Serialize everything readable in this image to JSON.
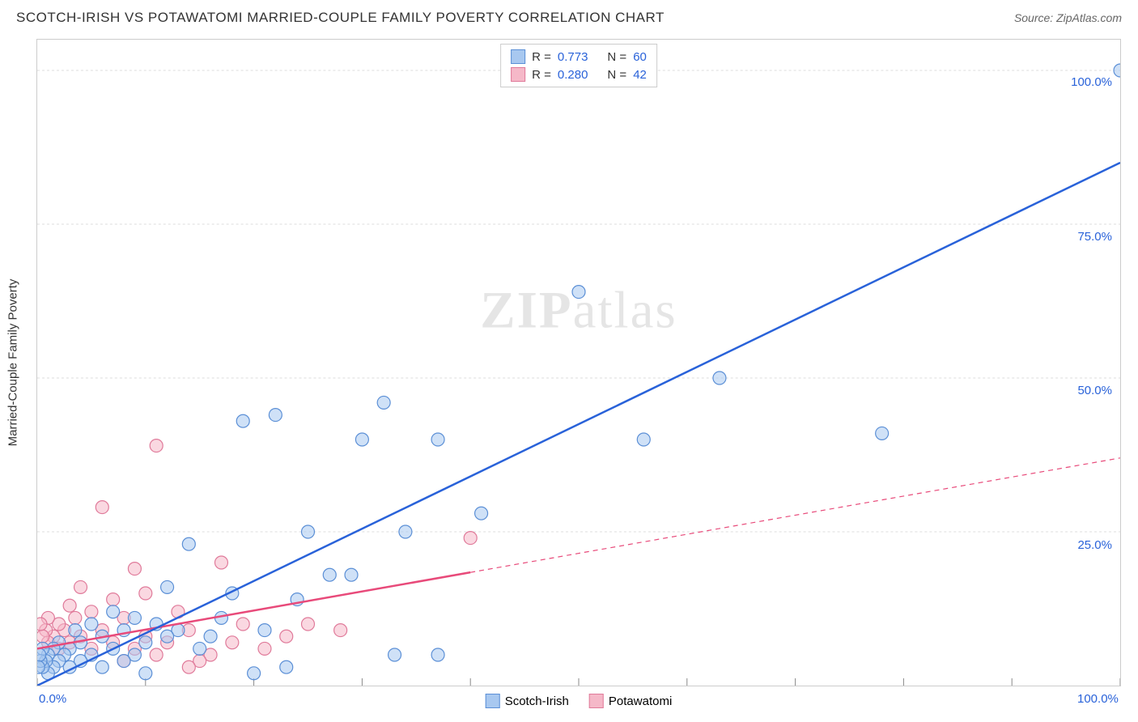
{
  "header": {
    "title": "SCOTCH-IRISH VS POTAWATOMI MARRIED-COUPLE FAMILY POVERTY CORRELATION CHART",
    "source_prefix": "Source: ",
    "source": "ZipAtlas.com"
  },
  "watermark": {
    "bold": "ZIP",
    "light": "atlas"
  },
  "y_axis_label": "Married-Couple Family Poverty",
  "stats": {
    "series1": {
      "r_label": "R =",
      "r_value": "0.773",
      "n_label": "N =",
      "n_value": "60"
    },
    "series2": {
      "r_label": "R =",
      "r_value": "0.280",
      "n_label": "N =",
      "n_value": "42"
    }
  },
  "legend": {
    "series1": "Scotch-Irish",
    "series2": "Potawatomi"
  },
  "colors": {
    "series1_fill": "#a8c8f0",
    "series1_stroke": "#5b8fd6",
    "series1_line": "#2962d9",
    "series2_fill": "#f5b8c8",
    "series2_stroke": "#e07a9a",
    "series2_line": "#e84a7a",
    "grid": "#dddddd",
    "border": "#cccccc",
    "text": "#333333",
    "value": "#2962d9",
    "background": "#ffffff"
  },
  "chart": {
    "type": "scatter",
    "xlim": [
      0,
      100
    ],
    "ylim": [
      0,
      105
    ],
    "x_ticks": [
      0,
      10,
      20,
      30,
      40,
      50,
      60,
      70,
      80,
      90,
      100
    ],
    "y_gridlines": [
      25,
      50,
      75,
      100
    ],
    "x_tick_labels": {
      "0": "0.0%",
      "100": "100.0%"
    },
    "y_tick_labels": {
      "25": "25.0%",
      "50": "50.0%",
      "75": "75.0%",
      "100": "100.0%"
    },
    "marker_radius": 8,
    "marker_opacity": 0.55,
    "line_width": 2.5,
    "series1_line": {
      "x1": 0,
      "y1": 0,
      "x2": 100,
      "y2": 85,
      "solid_until": 100
    },
    "series2_line": {
      "x1": 0,
      "y1": 6,
      "x2": 100,
      "y2": 37,
      "solid_until": 40
    },
    "series1_points": [
      [
        100,
        100
      ],
      [
        78,
        41
      ],
      [
        63,
        50
      ],
      [
        56,
        40
      ],
      [
        50,
        64
      ],
      [
        41,
        28
      ],
      [
        37,
        40
      ],
      [
        37,
        5
      ],
      [
        34,
        25
      ],
      [
        33,
        5
      ],
      [
        32,
        46
      ],
      [
        30,
        40
      ],
      [
        29,
        18
      ],
      [
        27,
        18
      ],
      [
        25,
        25
      ],
      [
        24,
        14
      ],
      [
        23,
        3
      ],
      [
        22,
        44
      ],
      [
        21,
        9
      ],
      [
        20,
        2
      ],
      [
        19,
        43
      ],
      [
        18,
        15
      ],
      [
        17,
        11
      ],
      [
        16,
        8
      ],
      [
        15,
        6
      ],
      [
        14,
        23
      ],
      [
        13,
        9
      ],
      [
        12,
        8
      ],
      [
        12,
        16
      ],
      [
        11,
        10
      ],
      [
        10,
        7
      ],
      [
        10,
        2
      ],
      [
        9,
        11
      ],
      [
        9,
        5
      ],
      [
        8,
        9
      ],
      [
        8,
        4
      ],
      [
        7,
        12
      ],
      [
        7,
        6
      ],
      [
        6,
        8
      ],
      [
        6,
        3
      ],
      [
        5,
        10
      ],
      [
        5,
        5
      ],
      [
        4,
        7
      ],
      [
        4,
        4
      ],
      [
        3.5,
        9
      ],
      [
        3,
        6
      ],
      [
        3,
        3
      ],
      [
        2.5,
        5
      ],
      [
        2,
        4
      ],
      [
        2,
        7
      ],
      [
        1.5,
        3
      ],
      [
        1.5,
        6
      ],
      [
        1,
        5
      ],
      [
        1,
        2
      ],
      [
        0.8,
        4
      ],
      [
        0.5,
        3
      ],
      [
        0.5,
        6
      ],
      [
        0.3,
        4
      ],
      [
        0.2,
        5
      ],
      [
        0.1,
        3
      ]
    ],
    "series2_points": [
      [
        40,
        24
      ],
      [
        28,
        9
      ],
      [
        25,
        10
      ],
      [
        23,
        8
      ],
      [
        21,
        6
      ],
      [
        19,
        10
      ],
      [
        18,
        7
      ],
      [
        17,
        20
      ],
      [
        16,
        5
      ],
      [
        15,
        4
      ],
      [
        14,
        9
      ],
      [
        14,
        3
      ],
      [
        13,
        12
      ],
      [
        12,
        7
      ],
      [
        11,
        39
      ],
      [
        11,
        5
      ],
      [
        10,
        15
      ],
      [
        10,
        8
      ],
      [
        9,
        19
      ],
      [
        9,
        6
      ],
      [
        8,
        11
      ],
      [
        8,
        4
      ],
      [
        7,
        14
      ],
      [
        7,
        7
      ],
      [
        6,
        29
      ],
      [
        6,
        9
      ],
      [
        5,
        12
      ],
      [
        5,
        6
      ],
      [
        4,
        16
      ],
      [
        4,
        8
      ],
      [
        3.5,
        11
      ],
      [
        3,
        7
      ],
      [
        3,
        13
      ],
      [
        2.5,
        9
      ],
      [
        2,
        6
      ],
      [
        2,
        10
      ],
      [
        1.5,
        8
      ],
      [
        1,
        7
      ],
      [
        1,
        11
      ],
      [
        0.8,
        9
      ],
      [
        0.5,
        8
      ],
      [
        0.3,
        10
      ]
    ]
  }
}
